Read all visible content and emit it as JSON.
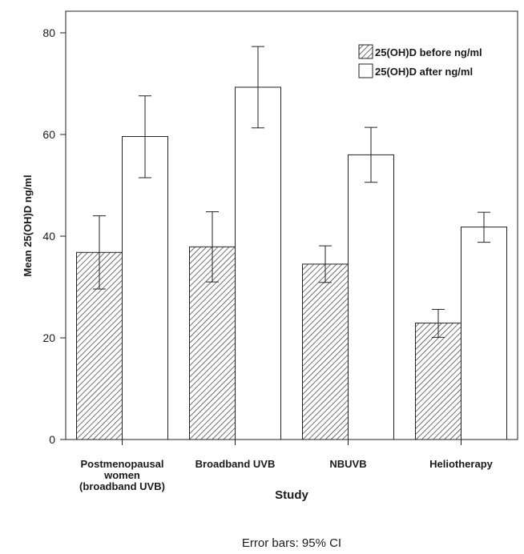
{
  "chart_data": {
    "type": "bar",
    "ylabel": "Mean 25(OH)D ng/ml",
    "xlabel": "Study",
    "footnote": "Error bars: 95% CI",
    "ylim": [
      0,
      85
    ],
    "yticks": [
      0,
      20,
      40,
      60,
      80
    ],
    "legend_position": "top-right",
    "categories": [
      [
        "Postmenopausal",
        "women",
        "(broadband UVB)"
      ],
      [
        "Broadband UVB"
      ],
      [
        "NBUVB"
      ],
      [
        "Heliotherapy"
      ]
    ],
    "series": [
      {
        "name": "25(OH)D before ng/ml",
        "pattern": "hatched",
        "values": [
          36.8,
          37.9,
          34.5,
          22.9
        ],
        "ci_low": [
          29.6,
          31.0,
          30.9,
          20.1
        ],
        "ci_high": [
          44.0,
          44.8,
          38.1,
          25.6
        ]
      },
      {
        "name": "25(OH)D after ng/ml",
        "pattern": "white",
        "values": [
          59.6,
          69.3,
          56.0,
          41.8
        ],
        "ci_low": [
          51.5,
          61.3,
          50.6,
          38.8
        ],
        "ci_high": [
          67.6,
          77.3,
          61.4,
          44.7
        ]
      }
    ]
  }
}
